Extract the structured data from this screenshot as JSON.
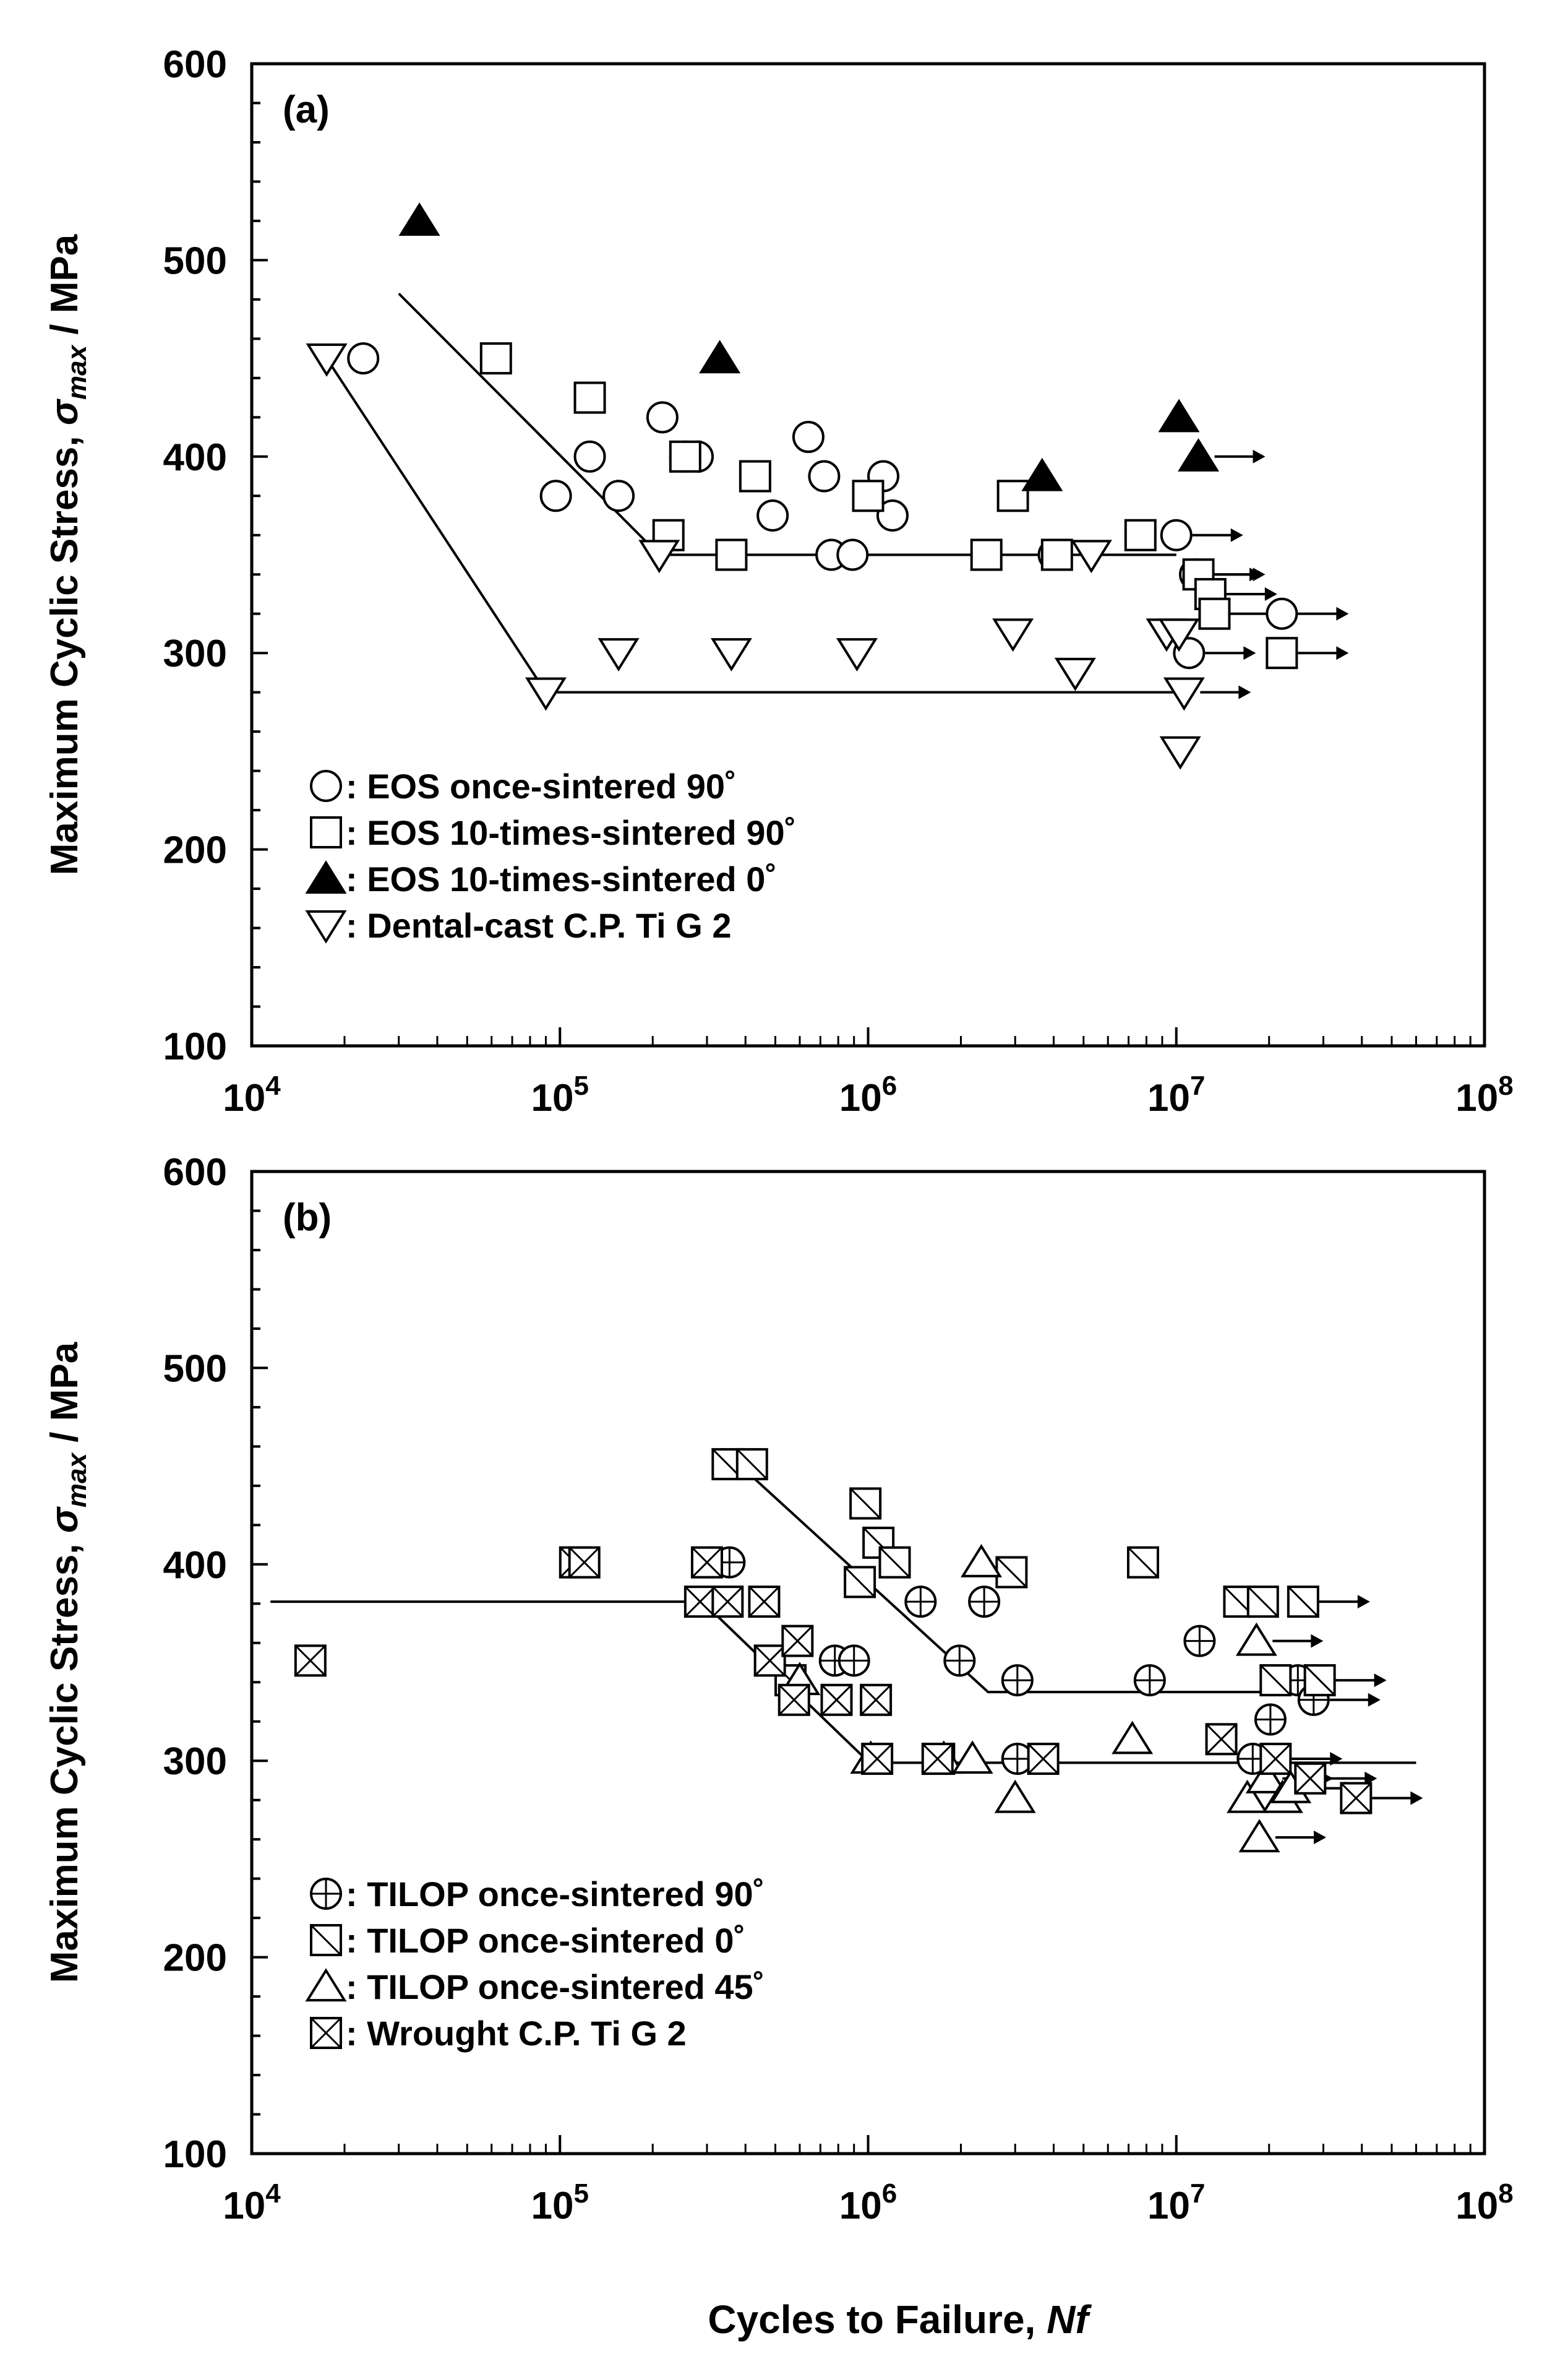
{
  "figure": {
    "xlabel_main": "Cycles to Failure, ",
    "xlabel_italic": "Nf"
  },
  "chart_data": [
    {
      "type": "scatter",
      "panel_label": "(a)",
      "xscale": "log",
      "xlim": [
        10000,
        100000000
      ],
      "ylim": [
        100,
        600
      ],
      "yticks": [
        100,
        200,
        300,
        400,
        500,
        600
      ],
      "ylabel_prefix": "Maximum Cyclic Stress, ",
      "ylabel_symbol": "σ",
      "ylabel_sub": "max",
      "ylabel_suffix": " / MPa",
      "xtick_labels": [
        {
          "base": "10",
          "exp": "4"
        },
        {
          "base": "10",
          "exp": "5"
        },
        {
          "base": "10",
          "exp": "6"
        },
        {
          "base": "10",
          "exp": "7"
        },
        {
          "base": "10",
          "exp": "8"
        }
      ],
      "legend_position": "bottom-left",
      "series": [
        {
          "name": ": EOS once-sintered  90˚",
          "marker": "circle",
          "points": [
            [
              23000,
              450
            ],
            [
              97000,
              380
            ],
            [
              125000,
              400
            ],
            [
              155000,
              380
            ],
            [
              215000,
              420
            ],
            [
              255000,
              400
            ],
            [
              280000,
              400
            ],
            [
              490000,
              370
            ],
            [
              640000,
              410
            ],
            [
              720000,
              390
            ],
            [
              760000,
              350
            ],
            [
              890000,
              350
            ],
            [
              1120000,
              390
            ],
            [
              1200000,
              370
            ],
            [
              4000000,
              350
            ],
            [
              10000000,
              360
            ],
            [
              11500000,
              340
            ],
            [
              11000000,
              300
            ],
            [
              22000000,
              320
            ]
          ],
          "runouts": [
            [
              10000000,
              360
            ],
            [
              11500000,
              340
            ],
            [
              11000000,
              300
            ],
            [
              22000000,
              320
            ]
          ]
        },
        {
          "name": ": EOS 10-times-sintered  90˚",
          "marker": "square",
          "points": [
            [
              62000,
              450
            ],
            [
              125000,
              430
            ],
            [
              225000,
              360
            ],
            [
              255000,
              400
            ],
            [
              360000,
              350
            ],
            [
              430000,
              390
            ],
            [
              1000000,
              380
            ],
            [
              2420000,
              350
            ],
            [
              2950000,
              380
            ],
            [
              4100000,
              350
            ],
            [
              7650000,
              360
            ],
            [
              11800000,
              340
            ],
            [
              12900000,
              330
            ],
            [
              13300000,
              320
            ],
            [
              22000000,
              300
            ]
          ],
          "runouts": [
            [
              11800000,
              340
            ],
            [
              12900000,
              330
            ],
            [
              13300000,
              320
            ],
            [
              22000000,
              300
            ]
          ]
        },
        {
          "name": ": EOS 10-times-sintered  0˚",
          "marker": "filled-triangle-up",
          "points": [
            [
              35000,
              520
            ],
            [
              330000,
              450
            ],
            [
              3670000,
              390
            ],
            [
              10200000,
              420
            ],
            [
              11800000,
              400
            ]
          ],
          "runouts": [
            [
              11800000,
              400
            ]
          ]
        },
        {
          "name": ": Dental-cast C.P. Ti G 2",
          "marker": "triangle-down",
          "points": [
            [
              17500,
              450
            ],
            [
              90000,
              280
            ],
            [
              155000,
              300
            ],
            [
              210000,
              350
            ],
            [
              360000,
              300
            ],
            [
              920000,
              300
            ],
            [
              2950000,
              310
            ],
            [
              4700000,
              290
            ],
            [
              5300000,
              350
            ],
            [
              9300000,
              310
            ],
            [
              10200000,
              310
            ],
            [
              10600000,
              280
            ],
            [
              10300000,
              250
            ]
          ],
          "runouts": [
            [
              10600000,
              280
            ]
          ]
        }
      ],
      "fit_lines": [
        {
          "name": "EOS fit",
          "points": [
            [
              30000,
              483
            ],
            [
              210000,
              350
            ],
            [
              10000000,
              350
            ]
          ]
        },
        {
          "name": "Dental-cast fit",
          "points": [
            [
              17500,
              450
            ],
            [
              90000,
              280
            ],
            [
              10000000,
              280
            ]
          ]
        }
      ]
    },
    {
      "type": "scatter",
      "panel_label": "(b)",
      "xscale": "log",
      "xlim": [
        10000,
        100000000
      ],
      "ylim": [
        100,
        600
      ],
      "yticks": [
        100,
        200,
        300,
        400,
        500,
        600
      ],
      "ylabel_prefix": "Maximum Cyclic Stress, ",
      "ylabel_symbol": "σ",
      "ylabel_sub": "max",
      "ylabel_suffix": " / MPa",
      "xtick_labels": [
        {
          "base": "10",
          "exp": "4"
        },
        {
          "base": "10",
          "exp": "5"
        },
        {
          "base": "10",
          "exp": "6"
        },
        {
          "base": "10",
          "exp": "7"
        },
        {
          "base": "10",
          "exp": "8"
        }
      ],
      "legend_position": "bottom-left",
      "series": [
        {
          "name": ": TILOP once-sintered  90˚",
          "marker": "circle-plus",
          "points": [
            [
              310000,
              401
            ],
            [
              355000,
              401
            ],
            [
              780000,
              351
            ],
            [
              900000,
              351
            ],
            [
              1480000,
              381
            ],
            [
              1980000,
              351
            ],
            [
              2380000,
              381
            ],
            [
              3050000,
              341
            ],
            [
              3050000,
              301
            ],
            [
              8200000,
              341
            ],
            [
              11900000,
              361
            ],
            [
              17700000,
              301
            ],
            [
              20200000,
              321
            ],
            [
              24800000,
              341
            ],
            [
              27900000,
              331
            ]
          ],
          "runouts": [
            [
              27900000,
              331
            ]
          ]
        },
        {
          "name": ": TILOP once-sintered  0˚",
          "marker": "square-slash",
          "points": [
            [
              350000,
              451
            ],
            [
              420000,
              451
            ],
            [
              560000,
              341
            ],
            [
              940000,
              391
            ],
            [
              980000,
              431
            ],
            [
              1080000,
              411
            ],
            [
              1220000,
              401
            ],
            [
              1700000,
              301
            ],
            [
              2920000,
              396
            ],
            [
              7800000,
              401
            ],
            [
              16000000,
              381
            ],
            [
              19100000,
              381
            ],
            [
              21000000,
              341
            ],
            [
              25800000,
              381
            ],
            [
              29200000,
              341
            ]
          ],
          "runouts": [
            [
              25800000,
              381
            ],
            [
              29200000,
              341
            ]
          ]
        },
        {
          "name": ": TILOP once-sintered  45˚",
          "marker": "triangle-up",
          "points": [
            [
              600000,
              341
            ],
            [
              1020000,
              301
            ],
            [
              1760000,
              301
            ],
            [
              2180000,
              301
            ],
            [
              2330000,
              401
            ],
            [
              3000000,
              281
            ],
            [
              7200000,
              311
            ],
            [
              17000000,
              281
            ],
            [
              18200000,
              361
            ],
            [
              18600000,
              261
            ],
            [
              19600000,
              291
            ],
            [
              22100000,
              281
            ],
            [
              23500000,
              286
            ]
          ],
          "runouts": [
            [
              18200000,
              361
            ],
            [
              18600000,
              261
            ],
            [
              19600000,
              291
            ],
            [
              23500000,
              286
            ]
          ]
        },
        {
          "name": ": Wrought C.P. Ti G 2",
          "marker": "square-x",
          "points": [
            [
              15500,
              351
            ],
            [
              112000,
              401
            ],
            [
              120000,
              401
            ],
            [
              285000,
              381
            ],
            [
              300000,
              401
            ],
            [
              350000,
              381
            ],
            [
              460000,
              381
            ],
            [
              480000,
              351
            ],
            [
              575000,
              331
            ],
            [
              590000,
              361
            ],
            [
              790000,
              331
            ],
            [
              1060000,
              331
            ],
            [
              1070000,
              301
            ],
            [
              1680000,
              301
            ],
            [
              3700000,
              301
            ],
            [
              14000000,
              311
            ],
            [
              21000000,
              301
            ],
            [
              27200000,
              291
            ],
            [
              38300000,
              281
            ]
          ],
          "runouts": [
            [
              21000000,
              301
            ],
            [
              27200000,
              291
            ],
            [
              38300000,
              281
            ]
          ]
        }
      ],
      "fit_lines": [
        {
          "name": "TILOP 0/90 fit",
          "points": [
            [
              380000,
              451
            ],
            [
              2450000,
              335
            ],
            [
              27000000,
              335
            ]
          ]
        },
        {
          "name": "Wrought/45 fit",
          "points": [
            [
              11500,
              381
            ],
            [
              290000,
              381
            ],
            [
              1010000,
              299
            ],
            [
              60000000,
              299
            ]
          ]
        }
      ]
    }
  ]
}
